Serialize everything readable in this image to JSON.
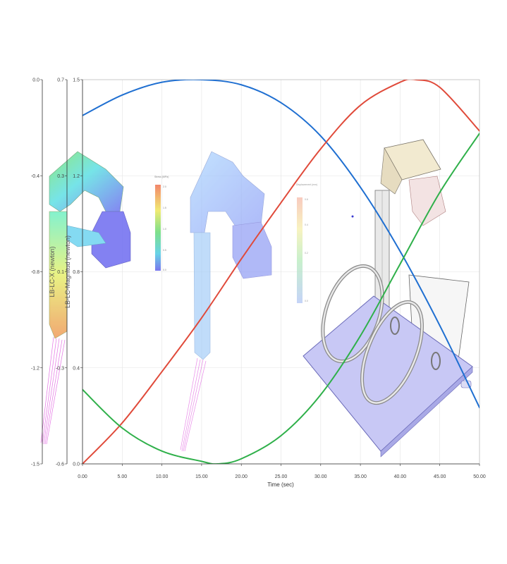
{
  "chart_data": {
    "type": "line",
    "xlabel": "Time (sec)",
    "xlim": [
      0,
      50
    ],
    "x_ticks": [
      "0.00",
      "5.00",
      "10.00",
      "15.00",
      "20.00",
      "25.00",
      "30.00",
      "35.00",
      "40.00",
      "45.00",
      "50.00"
    ],
    "axes": [
      {
        "id": "left1",
        "label": "",
        "ylim": [
          -1.5,
          0.0
        ],
        "ticks": [
          "0.0",
          "-0.4",
          "-0.8",
          "-1.2",
          "-1.5"
        ]
      },
      {
        "id": "left2",
        "label": "LB-LC-X (newton)",
        "ylim": [
          -0.6,
          0.7
        ],
        "ticks": [
          "0.7",
          "0.3",
          "0.1",
          "-0.3",
          "-0.6"
        ]
      },
      {
        "id": "left3",
        "label": "LB-LC-Magnitud (newton)",
        "ylim": [
          0.0,
          1.5
        ],
        "ticks": [
          "1.5",
          "1.2",
          "0.8",
          "0.4",
          "0.0"
        ]
      }
    ],
    "series": [
      {
        "color": "#1f6fd1",
        "axis": "left3",
        "x": [
          0,
          5,
          10,
          15,
          20,
          25,
          30,
          35,
          40,
          45,
          50
        ],
        "y": [
          1.36,
          1.44,
          1.49,
          1.5,
          1.48,
          1.41,
          1.28,
          1.08,
          0.83,
          0.54,
          0.22
        ]
      },
      {
        "color": "#e04a3a",
        "axis": "left3",
        "x": [
          0,
          5,
          10,
          15,
          20,
          25,
          30,
          35,
          40,
          42,
          45,
          50
        ],
        "y": [
          0.0,
          0.16,
          0.36,
          0.57,
          0.8,
          1.02,
          1.23,
          1.4,
          1.49,
          1.5,
          1.47,
          1.3
        ]
      },
      {
        "color": "#2fb04a",
        "axis": "left3",
        "x": [
          0,
          5,
          10,
          15,
          17,
          20,
          25,
          30,
          35,
          40,
          45,
          50
        ],
        "y": [
          0.29,
          0.14,
          0.05,
          0.01,
          0.0,
          0.02,
          0.11,
          0.27,
          0.5,
          0.78,
          1.06,
          1.29
        ]
      }
    ],
    "grid": true
  },
  "overlay": {
    "legend_mid_title": "Stress (MPa)",
    "legend_right_title": "Displacement (mm)"
  }
}
